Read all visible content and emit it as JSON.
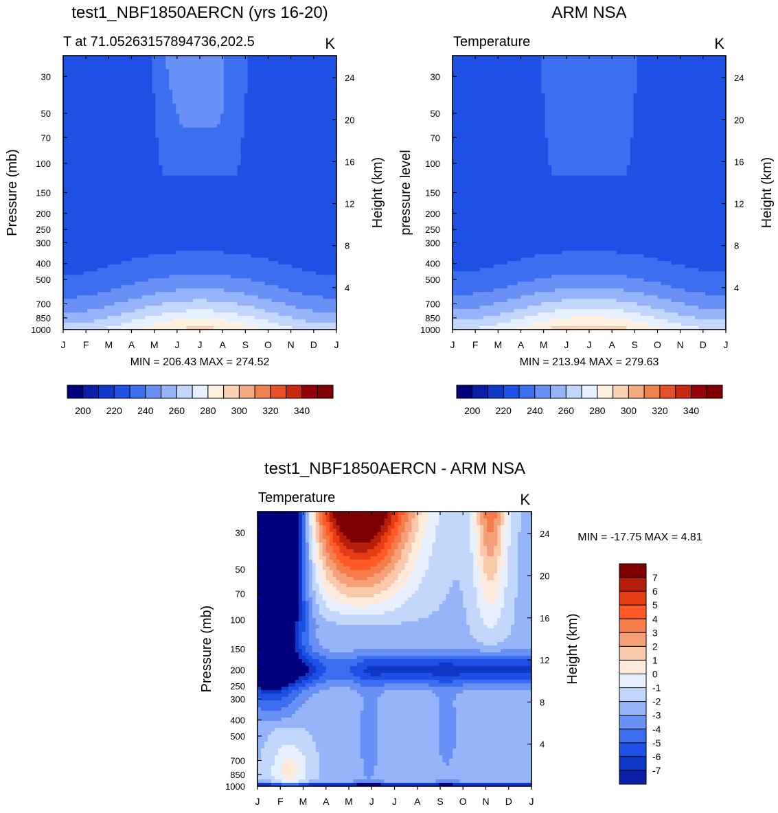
{
  "chart_data": [
    {
      "type": "contour",
      "title": "test1_NBF1850AERCN (yrs 16-20)",
      "subtitle_left": "T at 71.05263157894736,202.5",
      "subtitle_right": "K",
      "ylabel": "Pressure (mb)",
      "ylabel_right": "Height (km)",
      "x_ticks": [
        "J",
        "F",
        "M",
        "A",
        "M",
        "J",
        "J",
        "A",
        "S",
        "O",
        "N",
        "D",
        "J"
      ],
      "y_ticks": [
        30,
        50,
        70,
        100,
        150,
        200,
        250,
        300,
        400,
        500,
        700,
        850,
        1000
      ],
      "y_right_ticks": [
        24,
        20,
        16,
        12,
        8,
        4
      ],
      "stats": "MIN = 206.43 MAX = 274.52",
      "colorbar_labels": [
        200,
        220,
        240,
        260,
        280,
        300,
        320,
        340
      ]
    },
    {
      "type": "contour",
      "title": "ARM NSA",
      "subtitle_left": "Temperature",
      "subtitle_right": "K",
      "ylabel": "pressure level",
      "ylabel_right": "Height (km)",
      "x_ticks": [
        "J",
        "F",
        "M",
        "A",
        "M",
        "J",
        "J",
        "A",
        "S",
        "O",
        "N",
        "D",
        "J"
      ],
      "y_ticks": [
        30,
        50,
        70,
        100,
        150,
        200,
        250,
        300,
        400,
        500,
        700,
        850,
        1000
      ],
      "y_right_ticks": [
        24,
        20,
        16,
        12,
        8,
        4
      ],
      "stats": "MIN = 213.94 MAX = 279.63",
      "colorbar_labels": [
        200,
        220,
        240,
        260,
        280,
        300,
        320,
        340
      ]
    },
    {
      "type": "contour",
      "title": "test1_NBF1850AERCN - ARM NSA",
      "subtitle_left": "Temperature",
      "subtitle_right": "K",
      "ylabel": "Pressure (mb)",
      "ylabel_right": "Height (km)",
      "x_ticks": [
        "J",
        "F",
        "M",
        "A",
        "M",
        "J",
        "J",
        "A",
        "S",
        "O",
        "N",
        "D",
        "J"
      ],
      "y_ticks": [
        30,
        50,
        70,
        100,
        150,
        200,
        250,
        300,
        400,
        500,
        700,
        850,
        1000
      ],
      "y_right_ticks": [
        24,
        20,
        16,
        12,
        8,
        4
      ],
      "stats": "MIN = -17.75 MAX =   4.81",
      "colorbar_labels": [
        7,
        6,
        5,
        4,
        3,
        2,
        1,
        0,
        -1,
        -2,
        -3,
        -4,
        -5,
        -6,
        -7
      ]
    }
  ],
  "colors": {
    "abs_scale": [
      "#00007f",
      "#0a1ea8",
      "#0f37c8",
      "#1e50e6",
      "#3c6ef0",
      "#6991f5",
      "#96b4fa",
      "#c3d7fc",
      "#e6f0ff",
      "#fff0e0",
      "#fcd2b4",
      "#f5aa82",
      "#f08250",
      "#e65028",
      "#c8280f",
      "#96000a",
      "#7f0000"
    ],
    "diff_scale": [
      "#7f0000",
      "#b41e0a",
      "#e63c14",
      "#ff5a28",
      "#f57d4b",
      "#f5a078",
      "#fac8aa",
      "#ffebdc",
      "#e6f0ff",
      "#c3d7fc",
      "#96b4fa",
      "#6991f5",
      "#3c6ef0",
      "#1e50e6",
      "#0f37c8",
      "#0a1ea8",
      "#00007f"
    ]
  }
}
